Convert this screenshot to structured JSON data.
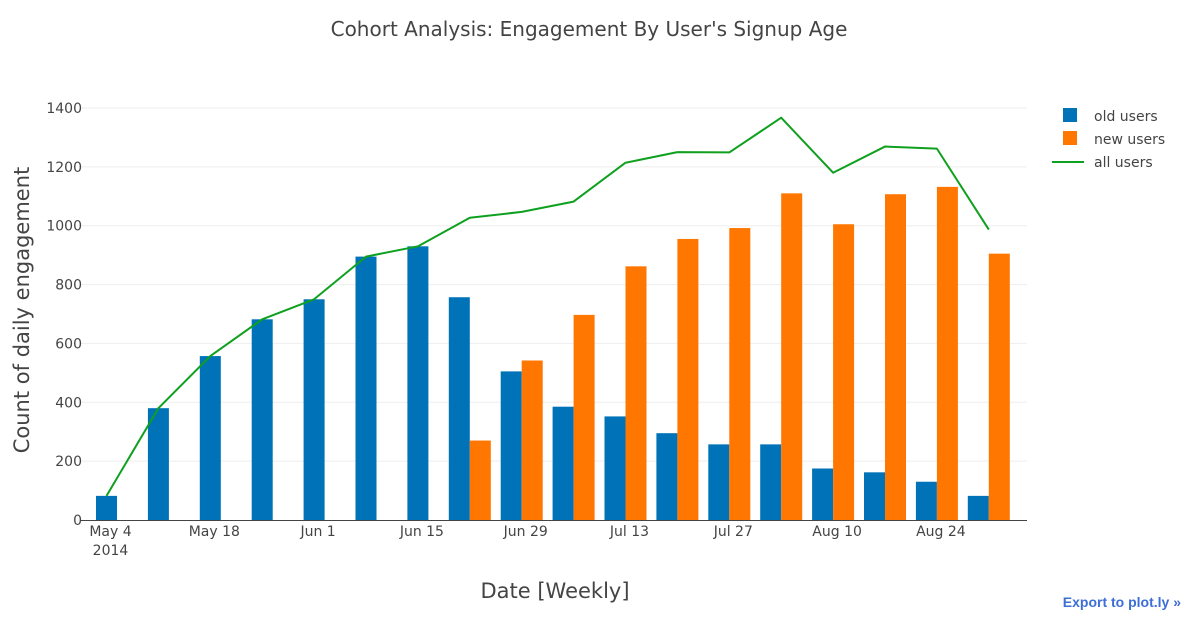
{
  "export_link": {
    "label": "Export to plot.ly »"
  },
  "colors": {
    "old": "#0072b8",
    "new": "#ff7600",
    "all": "#0ea01e",
    "grid": "#eeeeee",
    "axis": "#444444"
  },
  "chart_data": {
    "type": "bar",
    "title": "Cohort Analysis: Engagement By User's Signup Age",
    "xlabel": "Date [Weekly]",
    "ylabel": "Count of daily engagement",
    "ylim": [
      0,
      1400
    ],
    "yticks": [
      0,
      200,
      400,
      600,
      800,
      1000,
      1200,
      1400
    ],
    "xtick_labels": [
      "May 4",
      "May 18",
      "Jun 1",
      "Jun 15",
      "Jun 29",
      "Jul 13",
      "Jul 27",
      "Aug 10",
      "Aug 24"
    ],
    "xtick_year": "2014",
    "categories": [
      "2014-05-04",
      "2014-05-11",
      "2014-05-18",
      "2014-05-25",
      "2014-06-01",
      "2014-06-08",
      "2014-06-15",
      "2014-06-22",
      "2014-06-29",
      "2014-07-06",
      "2014-07-13",
      "2014-07-20",
      "2014-07-27",
      "2014-08-03",
      "2014-08-10",
      "2014-08-17",
      "2014-08-24",
      "2014-08-31"
    ],
    "grid": true,
    "legend_position": "top-right",
    "series": [
      {
        "name": "old users",
        "type": "bar",
        "values": [
          82,
          380,
          557,
          682,
          750,
          895,
          930,
          757,
          505,
          385,
          352,
          295,
          257,
          257,
          175,
          162,
          130,
          82
        ]
      },
      {
        "name": "new users",
        "type": "bar",
        "values": [
          0,
          0,
          0,
          0,
          0,
          0,
          0,
          270,
          542,
          697,
          862,
          955,
          992,
          1110,
          1005,
          1107,
          1132,
          905
        ]
      },
      {
        "name": "all users",
        "type": "line",
        "values": [
          82,
          380,
          557,
          682,
          750,
          895,
          930,
          1027,
          1047,
          1082,
          1214,
          1250,
          1249,
          1367,
          1180,
          1269,
          1262,
          987
        ]
      }
    ]
  }
}
